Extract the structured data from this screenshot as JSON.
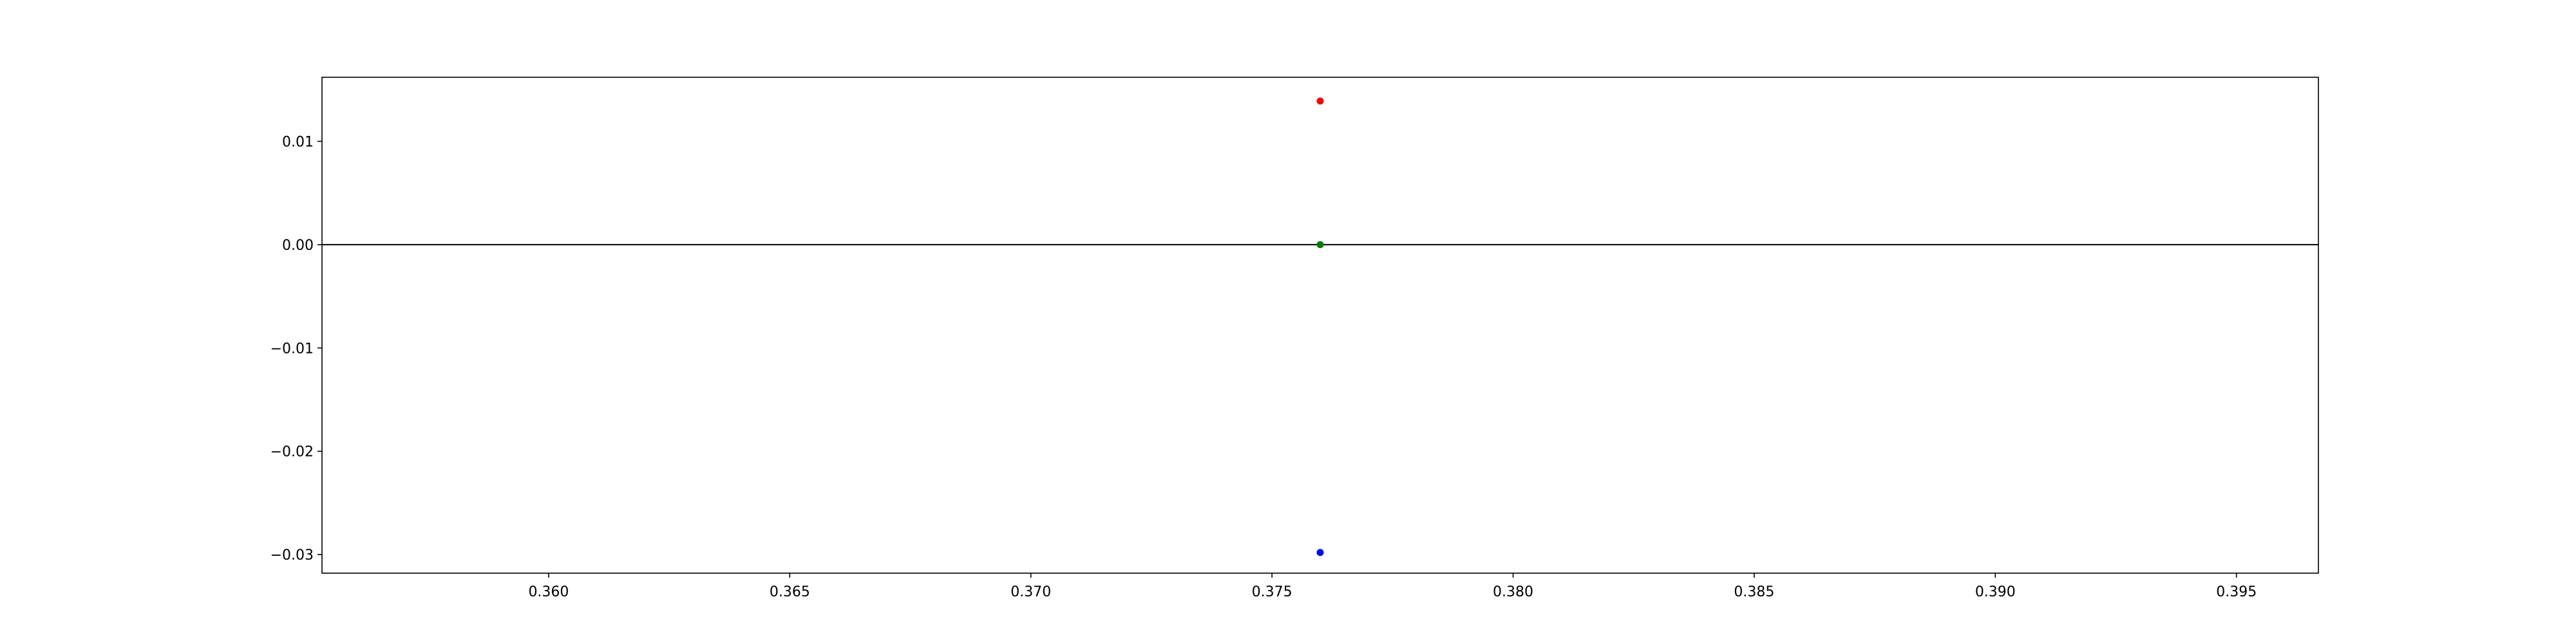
{
  "chart_data": {
    "type": "scatter",
    "title": "",
    "xlabel": "",
    "ylabel": "",
    "xlim": [
      0.3553,
      0.3967
    ],
    "ylim": [
      -0.0318,
      0.0162
    ],
    "x_ticks": [
      0.36,
      0.365,
      0.37,
      0.375,
      0.38,
      0.385,
      0.39,
      0.395
    ],
    "x_tick_labels": [
      "0.360",
      "0.365",
      "0.370",
      "0.375",
      "0.380",
      "0.385",
      "0.390",
      "0.395"
    ],
    "y_ticks": [
      0.01,
      0.0,
      -0.01,
      -0.02,
      -0.03
    ],
    "y_tick_labels": [
      "0.01",
      "0.00",
      "−0.01",
      "−0.02",
      "−0.03"
    ],
    "grid": false,
    "reference_line": {
      "y": 0.0,
      "color": "#000000"
    },
    "points": [
      {
        "x": 0.376,
        "y": 0.0139,
        "color": "#ff0000"
      },
      {
        "x": 0.376,
        "y": 0.0,
        "color": "#008000"
      },
      {
        "x": 0.376,
        "y": -0.0298,
        "color": "#0000ff"
      }
    ]
  }
}
